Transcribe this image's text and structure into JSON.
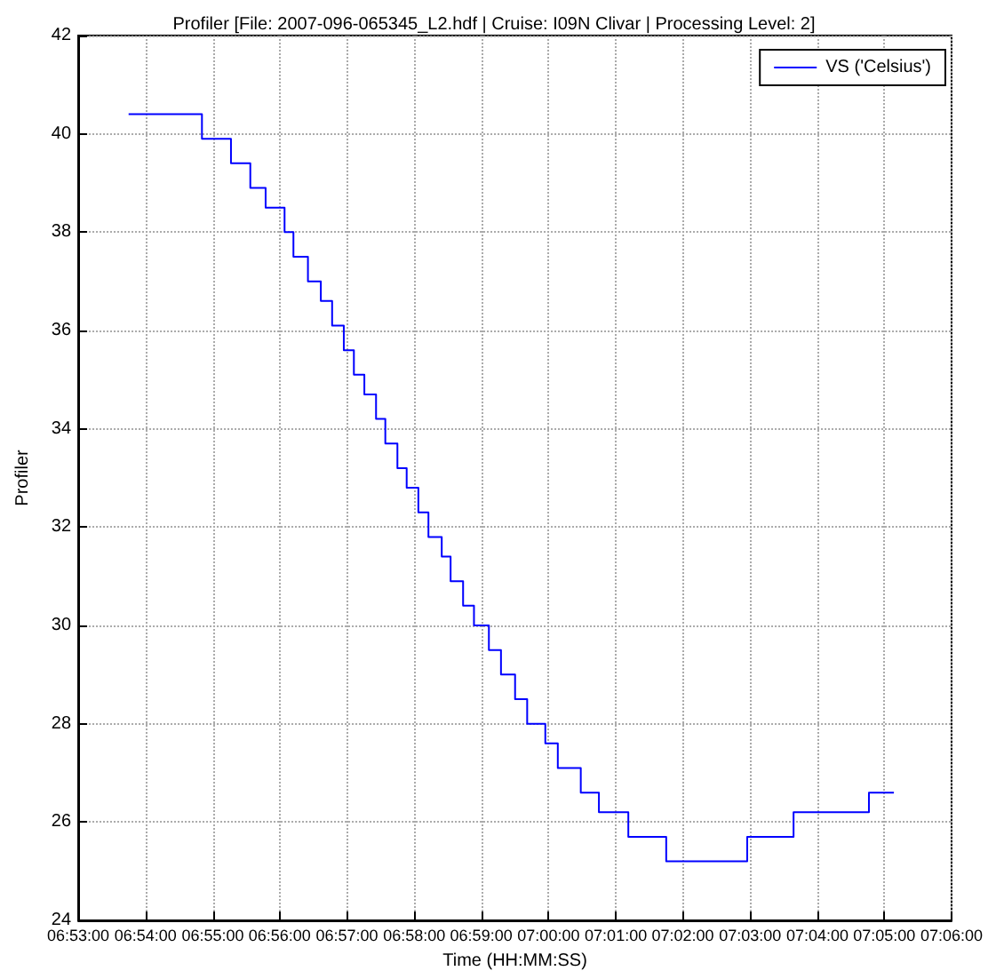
{
  "chart_data": {
    "type": "step",
    "title": "Profiler [File: 2007-096-065345_L2.hdf | Cruise: I09N Clivar | Processing Level: 2]",
    "xlabel": "Time (HH:MM:SS)",
    "ylabel": "Profiler",
    "series": [
      {
        "name": "VS ('Celsius')",
        "color": "#0000ff",
        "x": [
          6.8958,
          6.914,
          6.9212,
          6.926,
          6.9298,
          6.9345,
          6.9367,
          6.9403,
          6.9435,
          6.9463,
          6.9492,
          6.9517,
          6.9543,
          6.9572,
          6.9595,
          6.9625,
          6.9648,
          6.9677,
          6.9702,
          6.9735,
          6.9757,
          6.9788,
          6.9815,
          6.9852,
          6.9882,
          6.9917,
          6.9947,
          6.9992,
          7.0023,
          7.008,
          7.0125,
          7.0198,
          7.0292,
          7.0493,
          7.0608,
          7.0795,
          7.0857
        ],
        "values": [
          40.4,
          39.9,
          39.4,
          38.9,
          38.5,
          38.0,
          37.5,
          37.0,
          36.6,
          36.1,
          35.6,
          35.1,
          34.7,
          34.2,
          33.7,
          33.2,
          32.8,
          32.3,
          31.8,
          31.4,
          30.9,
          30.4,
          30.0,
          29.5,
          29.0,
          28.5,
          28.0,
          27.6,
          27.1,
          26.6,
          26.2,
          25.7,
          25.2,
          25.7,
          26.2,
          26.6,
          26.6
        ]
      }
    ],
    "xlim": [
      6.8833,
      7.1
    ],
    "xticks": [
      {
        "value": 6.8833,
        "label": "06:53:00"
      },
      {
        "value": 6.9,
        "label": "06:54:00"
      },
      {
        "value": 6.9167,
        "label": "06:55:00"
      },
      {
        "value": 6.9333,
        "label": "06:56:00"
      },
      {
        "value": 6.95,
        "label": "06:57:00"
      },
      {
        "value": 6.9667,
        "label": "06:58:00"
      },
      {
        "value": 6.9833,
        "label": "06:59:00"
      },
      {
        "value": 7,
        "label": "07:00:00"
      },
      {
        "value": 7.0167,
        "label": "07:01:00"
      },
      {
        "value": 7.0333,
        "label": "07:02:00"
      },
      {
        "value": 7.05,
        "label": "07:03:00"
      },
      {
        "value": 7.0667,
        "label": "07:04:00"
      },
      {
        "value": 7.0833,
        "label": "07:05:00"
      },
      {
        "value": 7.1,
        "label": "07:06:00"
      }
    ],
    "ylim": [
      24,
      42
    ],
    "yticks": [
      24,
      26,
      28,
      30,
      32,
      34,
      36,
      38,
      40,
      42
    ],
    "grid": true,
    "legend": "top right",
    "marker": "none",
    "line_style": "solid"
  }
}
